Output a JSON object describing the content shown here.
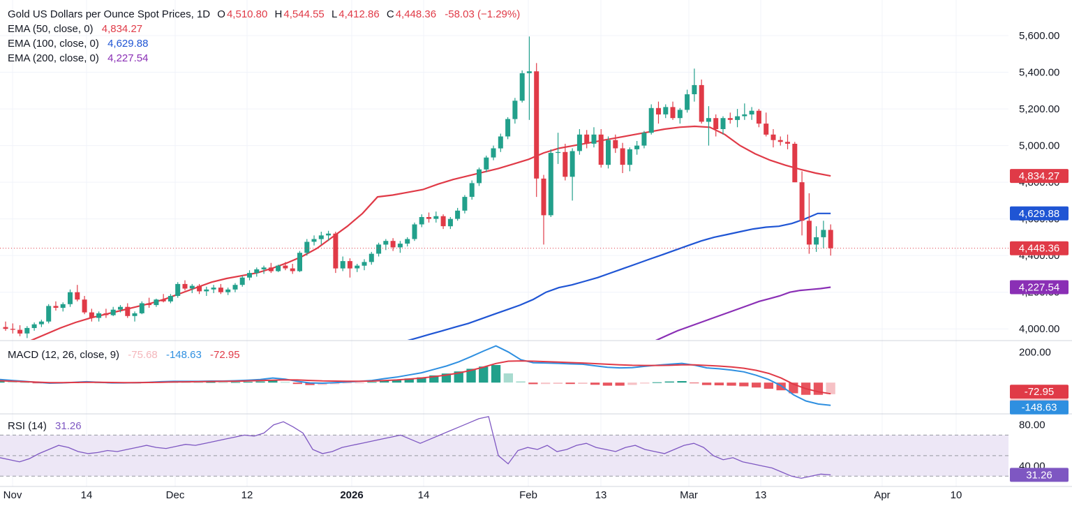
{
  "header": {
    "symbol_title": "Gold US Dollars per Ounce Spot Prices, 1D",
    "ohlc": [
      {
        "key": "O",
        "value": "4,510.80"
      },
      {
        "key": "H",
        "value": "4,544.55"
      },
      {
        "key": "L",
        "value": "4,412.86"
      },
      {
        "key": "C",
        "value": "4,448.36"
      }
    ],
    "change": "-58.03 (−1.29%)"
  },
  "indicators": {
    "ema50": {
      "label": "EMA (50, close, 0)",
      "value": "4,834.27",
      "price_tag": "4,834.27",
      "color": "#e03a47"
    },
    "ema100": {
      "label": "EMA (100, close, 0)",
      "value": "4,629.88",
      "price_tag": "4,629.88",
      "color": "#1f55d4"
    },
    "ema200": {
      "label": "EMA (200, close, 0)",
      "value": "4,227.54",
      "price_tag": "4,227.54",
      "color": "#8a2fb5"
    },
    "close_tag": "4,448.36",
    "macd": {
      "label": "MACD (12, 26, close, 9)",
      "hist": "-75.68",
      "macd": "-148.63",
      "signal": "-72.95",
      "tags": {
        "signal": "-72.95",
        "hist": "-75.68",
        "macd": "-148.63"
      }
    },
    "rsi": {
      "label": "RSI (14)",
      "value": "31.26",
      "tag": "31.26"
    }
  },
  "colors": {
    "up": "#22a08b",
    "down": "#e03a47",
    "macd_line": "#2e8fe0",
    "signal_line": "#e03a47",
    "rsi_line": "#7e57c2",
    "rsi_band": "#ede7f6",
    "hist_up_strong": "#22a08b",
    "hist_up_weak": "#a8dbcf",
    "hist_down_strong": "#e8545e",
    "hist_down_weak": "#f6c1c5"
  },
  "chart_data": {
    "type": "candlestick",
    "title": "Gold US Dollars per Ounce Spot Prices, 1D",
    "x_ticks": [
      "Nov",
      "14",
      "Dec",
      "12",
      "2026",
      "14",
      "Feb",
      "13",
      "Mar",
      "13",
      "Apr",
      "10"
    ],
    "price_axis": {
      "ticks": [
        "5,600.00",
        "5,400.00",
        "5,200.00",
        "5,000.00",
        "4,800.00",
        "4,600.00",
        "4,400.00",
        "4,200.00",
        "4,000.00"
      ],
      "range": [
        3940,
        5680
      ]
    },
    "macd_axis": {
      "ticks": [
        "200.00"
      ],
      "range": [
        -200,
        270
      ]
    },
    "rsi_axis": {
      "ticks": [
        "80.00",
        "40.00"
      ],
      "range": [
        20,
        90
      ],
      "band": [
        30,
        70
      ],
      "mid": 50
    },
    "candles": [
      [
        4010,
        4040,
        3990,
        4000
      ],
      [
        4000,
        4030,
        3975,
        3995
      ],
      [
        3995,
        4020,
        3960,
        3975
      ],
      [
        3975,
        4015,
        3950,
        4005
      ],
      [
        4005,
        4035,
        3990,
        4025
      ],
      [
        4025,
        4050,
        4010,
        4040
      ],
      [
        4040,
        4135,
        4030,
        4125
      ],
      [
        4125,
        4150,
        4100,
        4115
      ],
      [
        4115,
        4145,
        4095,
        4135
      ],
      [
        4135,
        4215,
        4120,
        4200
      ],
      [
        4200,
        4240,
        4150,
        4160
      ],
      [
        4160,
        4180,
        4080,
        4090
      ],
      [
        4090,
        4110,
        4040,
        4060
      ],
      [
        4060,
        4095,
        4040,
        4085
      ],
      [
        4085,
        4110,
        4060,
        4075
      ],
      [
        4075,
        4120,
        4070,
        4105
      ],
      [
        4105,
        4130,
        4090,
        4120
      ],
      [
        4120,
        4140,
        4060,
        4070
      ],
      [
        4070,
        4095,
        4040,
        4085
      ],
      [
        4085,
        4150,
        4080,
        4140
      ],
      [
        4140,
        4170,
        4115,
        4130
      ],
      [
        4130,
        4165,
        4120,
        4160
      ],
      [
        4160,
        4190,
        4145,
        4150
      ],
      [
        4150,
        4190,
        4140,
        4180
      ],
      [
        4180,
        4255,
        4170,
        4245
      ],
      [
        4245,
        4265,
        4210,
        4220
      ],
      [
        4220,
        4245,
        4195,
        4235
      ],
      [
        4235,
        4245,
        4190,
        4205
      ],
      [
        4205,
        4230,
        4180,
        4215
      ],
      [
        4215,
        4240,
        4195,
        4225
      ],
      [
        4225,
        4245,
        4190,
        4200
      ],
      [
        4200,
        4225,
        4185,
        4215
      ],
      [
        4215,
        4250,
        4200,
        4240
      ],
      [
        4240,
        4290,
        4230,
        4280
      ],
      [
        4280,
        4320,
        4265,
        4305
      ],
      [
        4305,
        4335,
        4285,
        4325
      ],
      [
        4325,
        4345,
        4300,
        4335
      ],
      [
        4335,
        4360,
        4305,
        4315
      ],
      [
        4315,
        4350,
        4310,
        4345
      ],
      [
        4345,
        4365,
        4320,
        4330
      ],
      [
        4330,
        4355,
        4300,
        4315
      ],
      [
        4315,
        4425,
        4310,
        4415
      ],
      [
        4415,
        4490,
        4400,
        4475
      ],
      [
        4475,
        4510,
        4455,
        4490
      ],
      [
        4490,
        4530,
        4460,
        4510
      ],
      [
        4510,
        4535,
        4480,
        4520
      ],
      [
        4520,
        4530,
        4305,
        4330
      ],
      [
        4330,
        4395,
        4315,
        4370
      ],
      [
        4370,
        4385,
        4280,
        4330
      ],
      [
        4330,
        4355,
        4310,
        4345
      ],
      [
        4345,
        4380,
        4320,
        4365
      ],
      [
        4365,
        4420,
        4350,
        4410
      ],
      [
        4410,
        4470,
        4395,
        4460
      ],
      [
        4460,
        4490,
        4430,
        4480
      ],
      [
        4480,
        4495,
        4425,
        4445
      ],
      [
        4445,
        4480,
        4415,
        4465
      ],
      [
        4465,
        4500,
        4450,
        4490
      ],
      [
        4490,
        4580,
        4480,
        4570
      ],
      [
        4570,
        4625,
        4555,
        4610
      ],
      [
        4610,
        4635,
        4580,
        4600
      ],
      [
        4600,
        4640,
        4580,
        4615
      ],
      [
        4615,
        4625,
        4545,
        4560
      ],
      [
        4560,
        4610,
        4545,
        4600
      ],
      [
        4600,
        4660,
        4590,
        4645
      ],
      [
        4645,
        4730,
        4630,
        4720
      ],
      [
        4720,
        4810,
        4705,
        4795
      ],
      [
        4795,
        4880,
        4780,
        4870
      ],
      [
        4870,
        4945,
        4855,
        4935
      ],
      [
        4935,
        5000,
        4920,
        4985
      ],
      [
        4985,
        5065,
        4965,
        5050
      ],
      [
        5050,
        5155,
        5035,
        5145
      ],
      [
        5145,
        5260,
        5120,
        5245
      ],
      [
        5245,
        5410,
        5235,
        5395
      ],
      [
        5395,
        5595,
        5140,
        5405
      ],
      [
        5405,
        5450,
        4720,
        4820
      ],
      [
        4820,
        4840,
        4460,
        4620
      ],
      [
        4620,
        4980,
        4610,
        4960
      ],
      [
        4960,
        5070,
        4900,
        4965
      ],
      [
        4965,
        5010,
        4810,
        4830
      ],
      [
        4830,
        4985,
        4700,
        4970
      ],
      [
        4970,
        5090,
        4950,
        5060
      ],
      [
        5060,
        5085,
        4985,
        5010
      ],
      [
        5010,
        5100,
        4990,
        5060
      ],
      [
        5060,
        5090,
        4880,
        4895
      ],
      [
        4895,
        5050,
        4875,
        5030
      ],
      [
        5030,
        5060,
        4960,
        4985
      ],
      [
        4985,
        5015,
        4850,
        4895
      ],
      [
        4895,
        4990,
        4860,
        4980
      ],
      [
        4980,
        5025,
        4950,
        5000
      ],
      [
        5000,
        5080,
        4985,
        5070
      ],
      [
        5070,
        5225,
        5060,
        5205
      ],
      [
        5205,
        5240,
        5120,
        5170
      ],
      [
        5170,
        5225,
        5150,
        5210
      ],
      [
        5210,
        5240,
        5140,
        5150
      ],
      [
        5150,
        5205,
        5120,
        5195
      ],
      [
        5195,
        5305,
        5180,
        5280
      ],
      [
        5280,
        5420,
        5240,
        5330
      ],
      [
        5330,
        5360,
        5120,
        5130
      ],
      [
        5130,
        5215,
        5000,
        5150
      ],
      [
        5150,
        5170,
        5050,
        5090
      ],
      [
        5090,
        5160,
        5060,
        5150
      ],
      [
        5150,
        5180,
        5120,
        5140
      ],
      [
        5140,
        5200,
        5100,
        5160
      ],
      [
        5160,
        5230,
        5140,
        5170
      ],
      [
        5170,
        5210,
        5140,
        5190
      ],
      [
        5190,
        5200,
        5100,
        5120
      ],
      [
        5120,
        5180,
        5050,
        5060
      ],
      [
        5060,
        5090,
        4990,
        5030
      ],
      [
        5030,
        5050,
        5000,
        5020
      ],
      [
        5020,
        5060,
        4980,
        5010
      ],
      [
        5010,
        5020,
        4800,
        4800
      ],
      [
        4800,
        4860,
        4510,
        4590
      ],
      [
        4590,
        4740,
        4410,
        4460
      ],
      [
        4460,
        4560,
        4420,
        4500
      ],
      [
        4500,
        4590,
        4440,
        4540
      ],
      [
        4540,
        4570,
        4400,
        4440
      ]
    ],
    "ema_series": [
      {
        "name": "EMA (50, close, 0)",
        "start": 0,
        "values": [
          3870,
          3900,
          3935,
          3970,
          4005,
          4035,
          4060,
          4080,
          4100,
          4120,
          4140,
          4165,
          4195,
          4225,
          4255,
          4275,
          4290,
          4305,
          4330,
          4360,
          4395,
          4440,
          4500,
          4560,
          4630,
          4720,
          4730,
          4745,
          4760,
          4790,
          4815,
          4835,
          4855,
          4875,
          4900,
          4925,
          4960,
          4985,
          5000,
          5015,
          5030,
          5045,
          5060,
          5075,
          5090,
          5100,
          5105,
          5100,
          5060,
          5000,
          4955,
          4920,
          4893,
          4870,
          4850,
          4834.27
        ]
      },
      {
        "name": "EMA (100, close, 0)",
        "start": 0,
        "values": [
          3800,
          3820,
          3840,
          3855,
          3870,
          3885,
          3900,
          3915,
          3930,
          3950,
          3970,
          3990,
          4010,
          4030,
          4055,
          4080,
          4105,
          4130,
          4160,
          4200,
          4225,
          4240,
          4260,
          4280,
          4305,
          4330,
          4355,
          4380,
          4405,
          4430,
          4455,
          4480,
          4500,
          4515,
          4530,
          4545,
          4555,
          4560,
          4575,
          4600,
          4630,
          4629.88
        ]
      },
      {
        "name": "EMA (200, close, 0)",
        "start": 0,
        "values": [
          3600,
          3640,
          3680,
          3720,
          3760,
          3800,
          3840,
          3880,
          3915,
          3940,
          3965,
          3990,
          4010,
          4030,
          4050,
          4070,
          4090,
          4110,
          4130,
          4150,
          4165,
          4180,
          4200,
          4210,
          4215,
          4220,
          4227.54
        ]
      }
    ],
    "macd_series": {
      "macd": [
        20,
        14,
        8,
        2,
        -4,
        -2,
        2,
        6,
        2,
        -2,
        -2,
        0,
        2,
        6,
        8,
        8,
        8,
        10,
        10,
        12,
        16,
        20,
        30,
        22,
        8,
        -2,
        -4,
        0,
        4,
        8,
        14,
        26,
        36,
        50,
        64,
        86,
        108,
        136,
        170,
        206,
        240,
        200,
        150,
        130,
        128,
        126,
        122,
        120,
        110,
        100,
        96,
        98,
        106,
        114,
        120,
        126,
        114,
        96,
        90,
        82,
        70,
        48,
        20,
        -20,
        -80,
        -120,
        -140,
        -148.63
      ],
      "signal": [
        12,
        9,
        6,
        3,
        0,
        0,
        1,
        2,
        2,
        1,
        0,
        0,
        1,
        2,
        4,
        5,
        6,
        7,
        8,
        9,
        11,
        13,
        16,
        18,
        17,
        14,
        11,
        10,
        9,
        9,
        10,
        13,
        17,
        23,
        30,
        39,
        49,
        63,
        80,
        101,
        125,
        140,
        142,
        140,
        137,
        134,
        131,
        128,
        124,
        120,
        116,
        113,
        112,
        112,
        113,
        116,
        116,
        112,
        108,
        102,
        94,
        80,
        60,
        30,
        -10,
        -40,
        -60,
        -72.95
      ],
      "hist": [
        8,
        5,
        2,
        -1,
        -4,
        -2,
        1,
        4,
        0,
        -3,
        -2,
        0,
        1,
        4,
        4,
        3,
        2,
        3,
        2,
        3,
        5,
        7,
        14,
        4,
        -9,
        -16,
        -15,
        -10,
        -5,
        -1,
        4,
        13,
        19,
        27,
        34,
        47,
        59,
        73,
        90,
        105,
        115,
        60,
        8,
        -10,
        -9,
        -8,
        -9,
        -8,
        -14,
        -20,
        -20,
        -15,
        -6,
        2,
        7,
        10,
        -2,
        -16,
        -18,
        -20,
        -24,
        -32,
        -40,
        -50,
        -70,
        -80,
        -80,
        -75.68
      ]
    },
    "rsi_series": [
      48,
      46,
      44,
      47,
      52,
      56,
      60,
      58,
      54,
      52,
      53,
      55,
      54,
      56,
      58,
      60,
      58,
      57,
      59,
      61,
      60,
      62,
      64,
      66,
      68,
      70,
      69,
      72,
      80,
      83,
      78,
      72,
      56,
      52,
      54,
      58,
      60,
      62,
      64,
      66,
      68,
      70,
      66,
      62,
      66,
      70,
      74,
      78,
      82,
      86,
      88,
      50,
      42,
      55,
      58,
      56,
      60,
      54,
      56,
      60,
      62,
      58,
      56,
      54,
      58,
      60,
      56,
      54,
      52,
      56,
      60,
      62,
      58,
      50,
      46,
      48,
      44,
      42,
      40,
      38,
      34,
      30,
      28,
      30,
      32,
      31.26
    ]
  }
}
